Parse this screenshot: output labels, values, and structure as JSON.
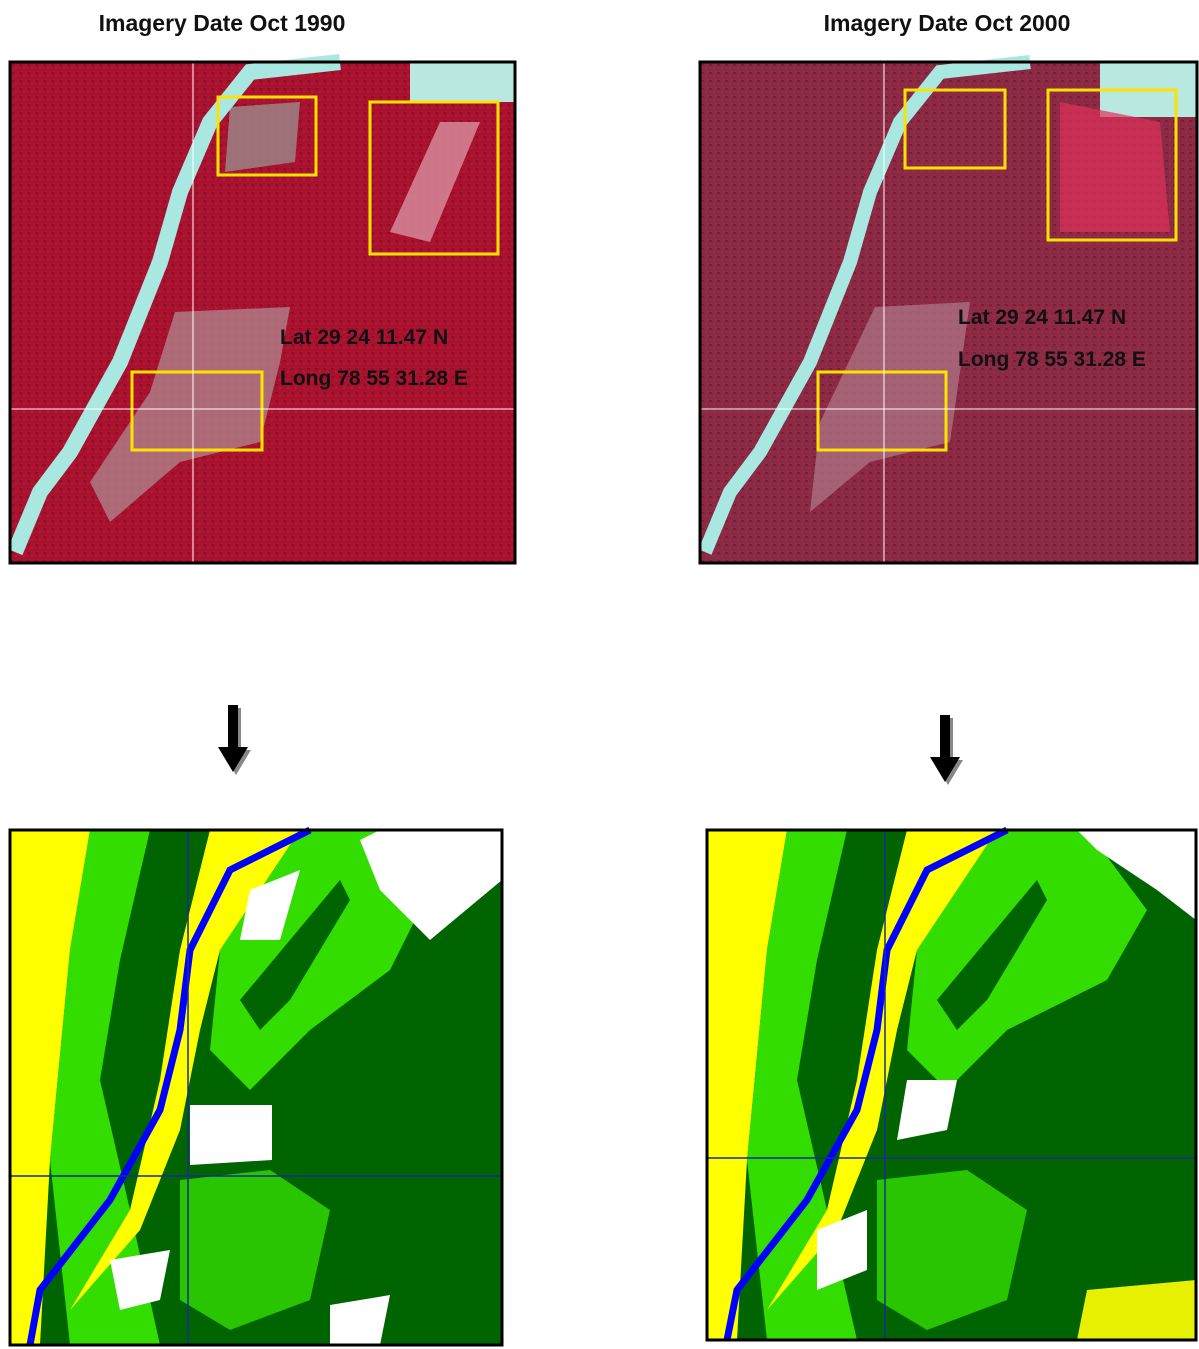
{
  "panels": [
    {
      "title": "Imagery Date Oct 1990",
      "coordinates": [
        "Lat 29 24 11.47 N",
        "Long 78 55 31.28 E"
      ]
    },
    {
      "title": "Imagery Date Oct 2000",
      "coordinates": [
        "Lat 29 24 11.47 N",
        "Long 78 55 31.28 E"
      ]
    }
  ]
}
